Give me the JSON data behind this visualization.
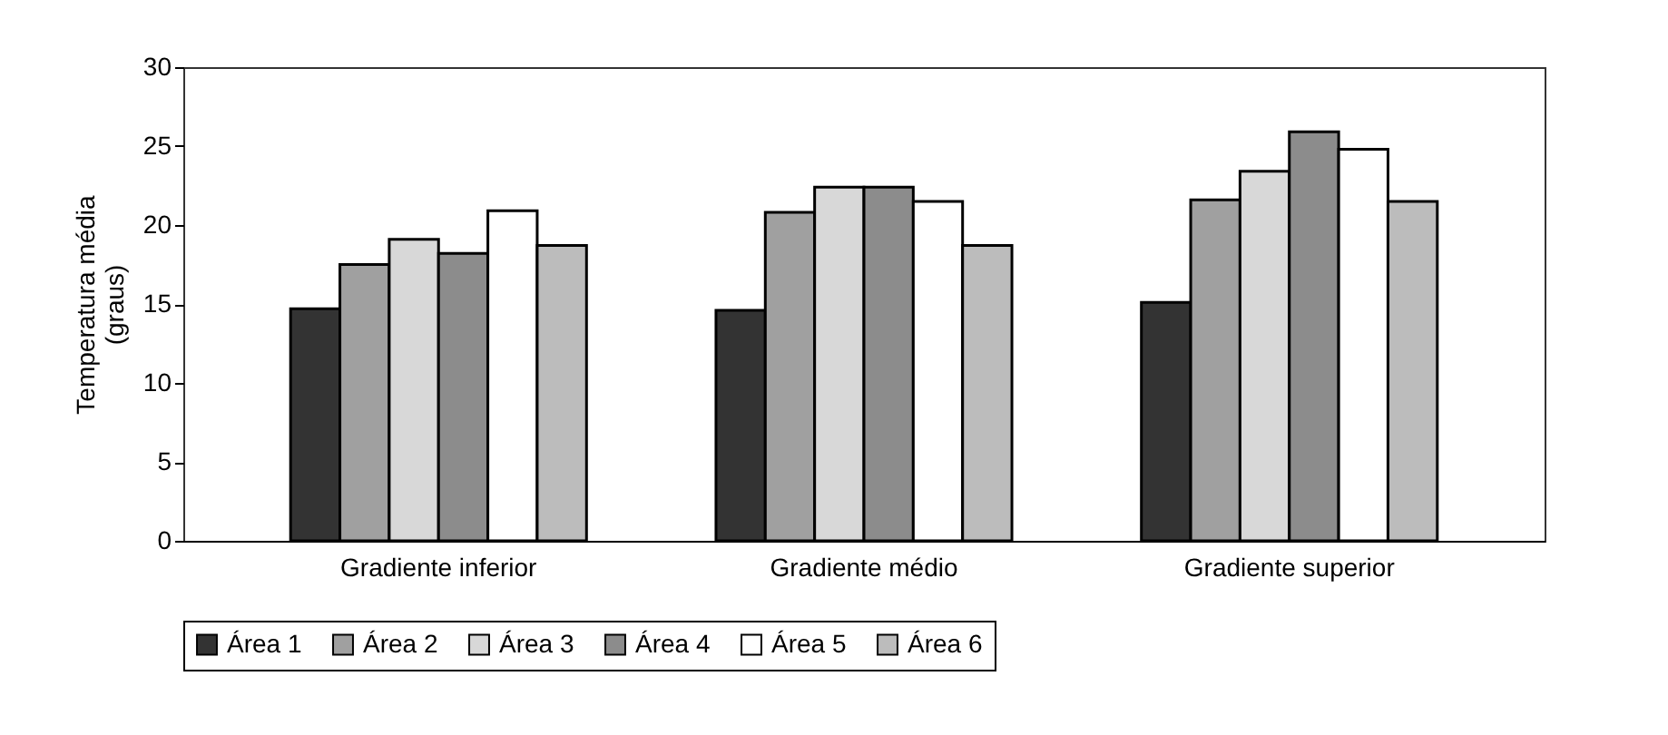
{
  "chart_data": {
    "type": "bar",
    "ylabel": "Temperatura média\n(graus)",
    "categories": [
      "Gradiente inferior",
      "Gradiente médio",
      "Gradiente superior"
    ],
    "series": [
      {
        "name": "Área 1",
        "color": "#333333",
        "values": [
          14.7,
          14.6,
          15.1
        ]
      },
      {
        "name": "Área 2",
        "color": "#a0a0a0",
        "values": [
          17.5,
          20.8,
          21.6
        ]
      },
      {
        "name": "Área 3",
        "color": "#d8d8d8",
        "values": [
          19.1,
          22.4,
          23.4
        ]
      },
      {
        "name": "Área 4",
        "color": "#8c8c8c",
        "values": [
          18.2,
          22.4,
          25.9
        ]
      },
      {
        "name": "Área 5",
        "color": "#ffffff",
        "values": [
          20.9,
          21.5,
          24.8
        ]
      },
      {
        "name": "Área 6",
        "color": "#bcbcbc",
        "values": [
          18.7,
          18.7,
          21.5
        ]
      }
    ],
    "ylim": [
      0,
      30
    ],
    "yticks": [
      0,
      5,
      10,
      15,
      20,
      25,
      30
    ],
    "grid": false,
    "legend": "bottom"
  }
}
